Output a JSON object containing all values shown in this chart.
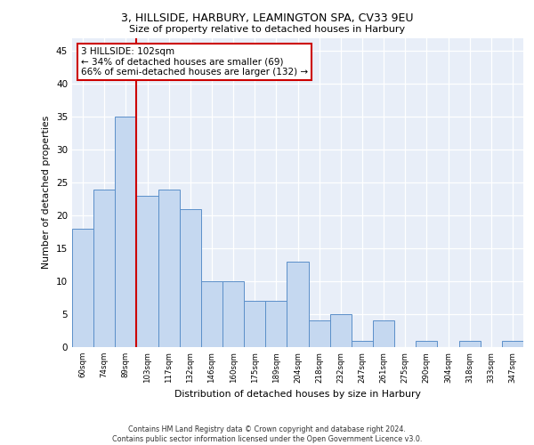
{
  "title1": "3, HILLSIDE, HARBURY, LEAMINGTON SPA, CV33 9EU",
  "title2": "Size of property relative to detached houses in Harbury",
  "xlabel": "Distribution of detached houses by size in Harbury",
  "ylabel": "Number of detached properties",
  "bar_values": [
    18,
    24,
    35,
    23,
    24,
    21,
    10,
    10,
    7,
    7,
    13,
    4,
    5,
    1,
    4,
    0,
    1,
    0,
    1,
    0,
    1
  ],
  "bar_labels": [
    "60sqm",
    "74sqm",
    "89sqm",
    "103sqm",
    "117sqm",
    "132sqm",
    "146sqm",
    "160sqm",
    "175sqm",
    "189sqm",
    "204sqm",
    "218sqm",
    "232sqm",
    "247sqm",
    "261sqm",
    "275sqm",
    "290sqm",
    "304sqm",
    "318sqm",
    "333sqm",
    "347sqm"
  ],
  "bar_color": "#c5d8f0",
  "bar_edge_color": "#5b8fc9",
  "vline_color": "#cc0000",
  "annotation_text": "3 HILLSIDE: 102sqm\n← 34% of detached houses are smaller (69)\n66% of semi-detached houses are larger (132) →",
  "annotation_box_facecolor": "#ffffff",
  "annotation_box_edge": "#cc0000",
  "ylim": [
    0,
    47
  ],
  "yticks": [
    0,
    5,
    10,
    15,
    20,
    25,
    30,
    35,
    40,
    45
  ],
  "footer": "Contains HM Land Registry data © Crown copyright and database right 2024.\nContains public sector information licensed under the Open Government Licence v3.0.",
  "plot_bg_color": "#e8eef8"
}
